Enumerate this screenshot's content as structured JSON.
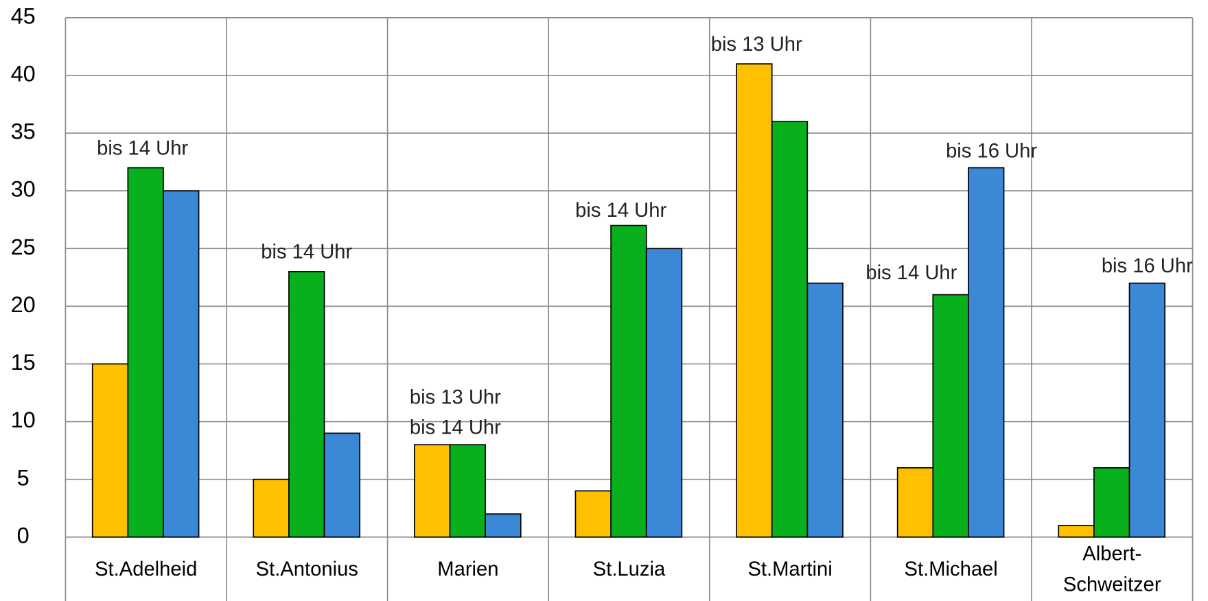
{
  "chart_data": {
    "type": "bar",
    "categories": [
      "St.Adelheid",
      "St.Antonius",
      "Marien",
      "St.Luzia",
      "St.Martini",
      "St.Michael",
      "Albert-Schweitzer"
    ],
    "series": [
      {
        "color": "#FFC000",
        "values": [
          15,
          5,
          8,
          4,
          41,
          6,
          1
        ]
      },
      {
        "color": "#09B01E",
        "values": [
          32,
          23,
          8,
          27,
          36,
          21,
          6
        ]
      },
      {
        "color": "#3A88D6",
        "values": [
          30,
          9,
          2,
          25,
          22,
          32,
          22
        ]
      }
    ],
    "annotations": [
      "bis 14 Uhr",
      "bis 14 Uhr",
      "bis 13 Uhr",
      "bis 14 Uhr",
      "bis 14 Uhr",
      "bis 13 Uhr",
      "bis 14 Uhr",
      "bis 16 Uhr",
      "bis 16 Uhr"
    ],
    "ylim": [
      0,
      45
    ],
    "yticks": [
      0,
      5,
      10,
      15,
      20,
      25,
      30,
      35,
      40,
      45
    ],
    "grid": true
  }
}
